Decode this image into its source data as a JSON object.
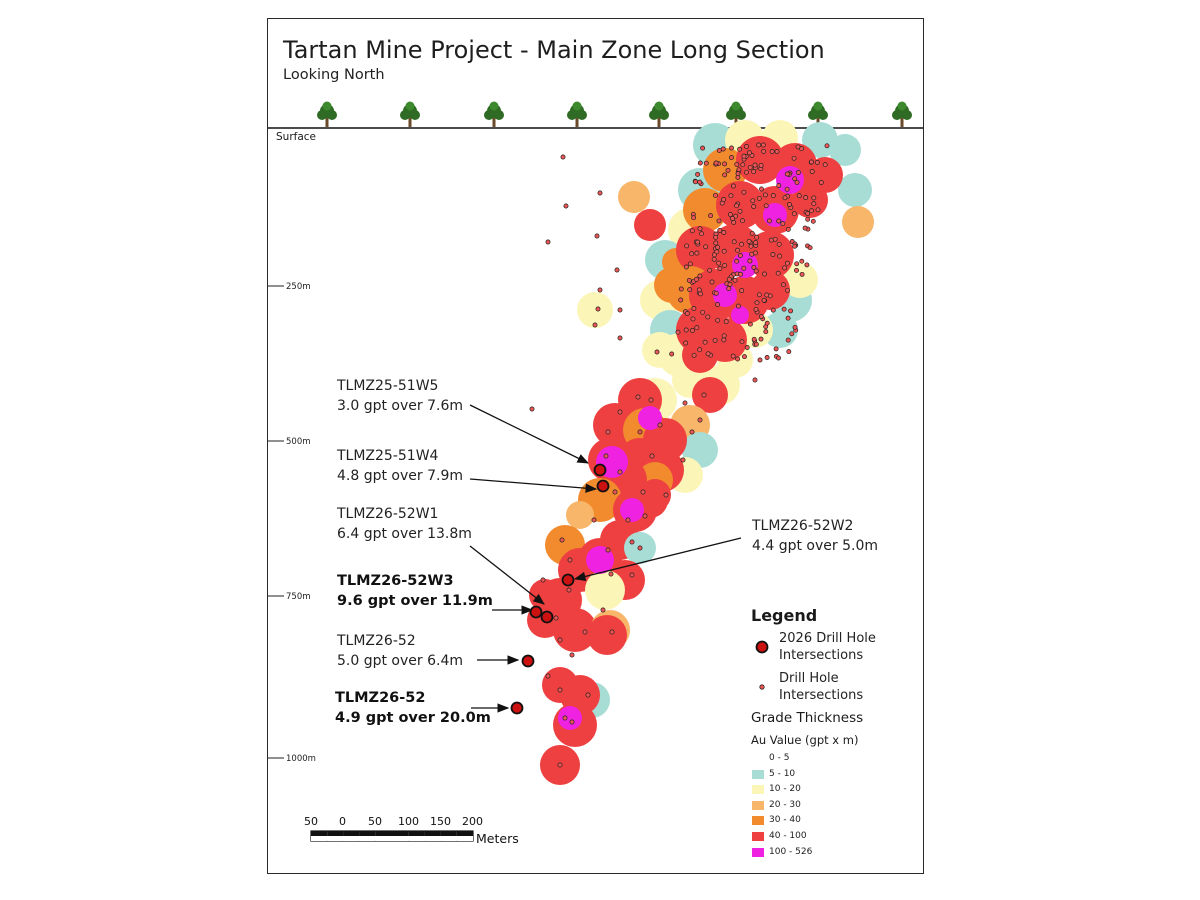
{
  "title": "Tartan Mine Project - Main Zone Long Section",
  "subtitle": "Looking North",
  "surface_label": "Surface",
  "depth_labels": [
    "250m",
    "500m",
    "750m",
    "1000m"
  ],
  "callouts": [
    {
      "hole": "TLMZ25-51W5",
      "result": "3.0 gpt over 7.6m",
      "bold": false
    },
    {
      "hole": "TLMZ25-51W4",
      "result": "4.8 gpt over 7.9m",
      "bold": false
    },
    {
      "hole": "TLMZ26-52W1",
      "result": "6.4 gpt over 13.8m",
      "bold": false
    },
    {
      "hole": "TLMZ26-52W2",
      "result": "4.4 gpt over 5.0m",
      "bold": false
    },
    {
      "hole": "TLMZ26-52W3",
      "result": "9.6 gpt over 11.9m",
      "bold": true
    },
    {
      "hole": "TLMZ26-52",
      "result": "5.0 gpt over 6.4m",
      "bold": false
    },
    {
      "hole": "TLMZ26-52",
      "result": "4.9 gpt over 20.0m",
      "bold": true
    }
  ],
  "legend": {
    "title": "Legend",
    "drill_2026": "2026 Drill Hole Intersections",
    "drill_2026_lines": [
      "2026 Drill Hole",
      "Intersections"
    ],
    "drill_hist_lines": [
      "Drill Hole",
      "Intersections"
    ],
    "grade_title": "Grade Thickness",
    "au_title": "Au Value  (gpt x m)",
    "ranges": [
      {
        "label": "0 - 5",
        "color": "#ffffff"
      },
      {
        "label": "5 - 10",
        "color": "#a8ddd6"
      },
      {
        "label": "10 - 20",
        "color": "#fbf6b8"
      },
      {
        "label": "20 - 30",
        "color": "#f7b66a"
      },
      {
        "label": "30 - 40",
        "color": "#f28a2e"
      },
      {
        "label": "40 - 100",
        "color": "#ee4040"
      },
      {
        "label": "100 - 526",
        "color": "#ee22e0"
      }
    ]
  },
  "scale_bar": {
    "ticks": [
      "50",
      "0",
      "50",
      "100",
      "150",
      "200"
    ],
    "unit": "Meters"
  },
  "colors": {
    "frame": "#2a2a2a",
    "drill_2026": "#cc1111",
    "drill_hist_fill": "#ee5555",
    "tree_foliage": "#2f6b24",
    "tree_trunk": "#6b4a2a"
  }
}
